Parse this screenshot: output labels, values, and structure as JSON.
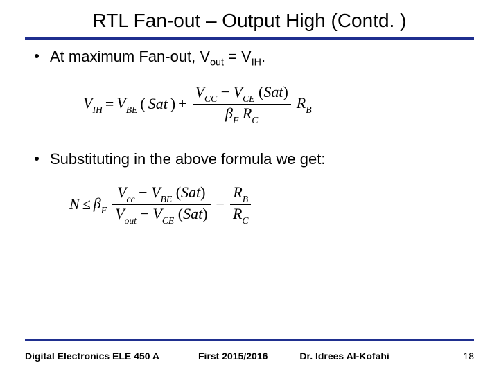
{
  "title": "RTL Fan-out – Output High (Contd. )",
  "bullets": {
    "b1_prefix": "At maximum Fan-out, V",
    "b1_sub1": "out",
    "b1_mid": " = V",
    "b1_sub2": "IH",
    "b1_suffix": ".",
    "b2": "Substituting in the above formula we get:"
  },
  "formula1": {
    "lhs_V": "V",
    "lhs_sub": "IH",
    "eq": " = ",
    "vbe_V": "V",
    "vbe_sub": "BE",
    "sat_open": "(",
    "sat": "Sat",
    "sat_close": ")",
    "plus": " + ",
    "num_vcc_V": "V",
    "num_vcc_sub": "CC",
    "minus": " − ",
    "num_vce_V": "V",
    "num_vce_sub": "CE",
    "den_beta": "β",
    "den_beta_sub": "F",
    "den_R": "R",
    "den_R_sub": "C",
    "rb_R": "R",
    "rb_sub": "B"
  },
  "formula2": {
    "N": "N",
    "le": " ≤ ",
    "beta": "β",
    "beta_sub": "F",
    "num_vcc_V": "V",
    "num_vcc_sub": "cc",
    "minus": " − ",
    "num_vbe_V": "V",
    "num_vbe_sub": "BE",
    "sat_open": "(",
    "sat": "Sat",
    "sat_close": ")",
    "den_vout_V": "V",
    "den_vout_sub": "out",
    "den_vce_V": "V",
    "den_vce_sub": "CE",
    "minus2": " − ",
    "rb_R": "R",
    "rb_sub": "B",
    "rc_R": "R",
    "rc_sub": "C"
  },
  "footer": {
    "course": "Digital Electronics ELE 450 A",
    "semester": "First 2015/2016",
    "author": "Dr. Idrees Al-Kofahi",
    "page": "18"
  },
  "colors": {
    "rule": "#1f2f8f",
    "text": "#000000",
    "background": "#ffffff"
  }
}
